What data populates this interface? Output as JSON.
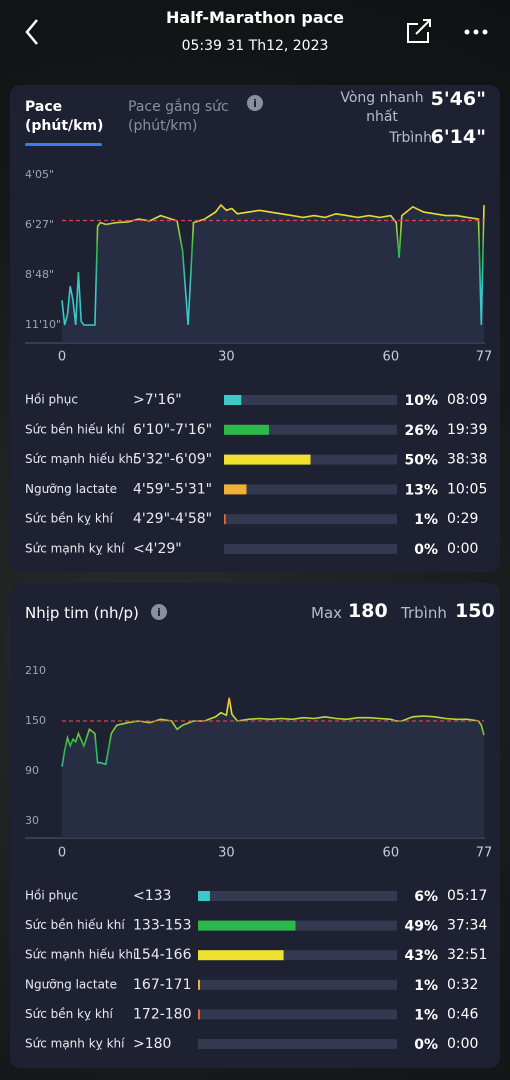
{
  "header": {
    "title": "Half-Marathon pace",
    "datetime": "05:39 31 Th12, 2023"
  },
  "pace_card": {
    "tabs": [
      {
        "label": "Pace",
        "unit": "(phút/km)"
      },
      {
        "label": "Pace gắng sức",
        "unit": "(phút/km)"
      }
    ],
    "fastest_lap": {
      "label": "Vòng nhanh nhất",
      "value": "5'46\""
    },
    "average": {
      "label": "Trbình",
      "value": {
        "value": 374,
        "label": "6'14\""
      }
    }
  },
  "hr_card": {
    "title": "Nhịp tim (nh/p)",
    "max": {
      "label": "Max",
      "value": 180
    },
    "average": {
      "label": "Trbình",
      "value": 150
    }
  },
  "chart_data": [
    {
      "type": "line",
      "y_inverted": true,
      "x": [
        0,
        0.5,
        1,
        1.5,
        2,
        2.5,
        3,
        3.5,
        4,
        5,
        6,
        6.5,
        7,
        8,
        10,
        12,
        14,
        16,
        18,
        20,
        21,
        22,
        23,
        24,
        26,
        28,
        29,
        30,
        31,
        32,
        34,
        36,
        38,
        40,
        42,
        44,
        46,
        48,
        50,
        52,
        54,
        56,
        58,
        60,
        61,
        61.5,
        62,
        64,
        66,
        68,
        70,
        72,
        74,
        76,
        76.5,
        77
      ],
      "series": [
        {
          "gradient": [
            "#f07030",
            "#f0e130",
            "#2db84a",
            "#3cc8c8",
            "#3cc8c8"
          ],
          "values": [
            600,
            670,
            640,
            560,
            600,
            670,
            520,
            660,
            670,
            670,
            670,
            390,
            380,
            385,
            380,
            378,
            370,
            375,
            360,
            370,
            375,
            460,
            670,
            380,
            370,
            350,
            330,
            345,
            340,
            355,
            350,
            345,
            350,
            355,
            360,
            365,
            360,
            365,
            355,
            360,
            365,
            360,
            365,
            360,
            380,
            480,
            360,
            335,
            350,
            355,
            360,
            360,
            365,
            370,
            670,
            330
          ]
        }
      ],
      "xlim": [
        0,
        77
      ],
      "xticks": [
        0,
        30,
        60,
        77
      ],
      "ylim": [
        245,
        670
      ],
      "yticks": [
        {
          "value": 245,
          "label": "4'05\""
        },
        {
          "value": 387,
          "label": "6'27\""
        },
        {
          "value": 528,
          "label": "8'48\""
        },
        {
          "value": 670,
          "label": "11'10\""
        }
      ]
    },
    {
      "type": "zones",
      "categories": [
        "Hồi phục",
        "Sức bền hiếu khí",
        "Sức mạnh hiếu khí",
        "Ngưỡng lactate",
        "Sức bền kỵ khí",
        "Sức mạnh kỵ khí"
      ],
      "ranges": [
        ">7'16\"",
        "6'10\"-7'16\"",
        "5'32\"-6'09\"",
        "4'59\"-5'31\"",
        "4'29\"-4'58\"",
        "<4'29\""
      ],
      "values": [
        10,
        26,
        50,
        13,
        1,
        0
      ],
      "value_labels": [
        "10%",
        "26%",
        "50%",
        "13%",
        "1%",
        "0%"
      ],
      "times": [
        "08:09",
        "19:39",
        "38:38",
        "10:05",
        "0:29",
        "0:00"
      ],
      "colors": [
        "#3cc8c8",
        "#2db84a",
        "#f0e130",
        "#f0b030",
        "#e06a30",
        "#e04040"
      ],
      "xlim": [
        0,
        100
      ]
    },
    {
      "type": "line",
      "y_inverted": false,
      "x": [
        0,
        0.5,
        1,
        1.5,
        2,
        2.5,
        3,
        4,
        5,
        6,
        6.5,
        7,
        8,
        9,
        10,
        12,
        14,
        16,
        18,
        20,
        21,
        22,
        24,
        26,
        28,
        29,
        30,
        30.5,
        31,
        32,
        34,
        36,
        38,
        40,
        42,
        44,
        46,
        48,
        50,
        52,
        54,
        56,
        58,
        60,
        61,
        62,
        64,
        66,
        68,
        70,
        72,
        74,
        76,
        76.5,
        77
      ],
      "series": [
        {
          "gradient": [
            "#f04030",
            "#f0e130",
            "#2db84a",
            "#3cc8c8",
            "#3cc8c8"
          ],
          "values": [
            95,
            115,
            130,
            120,
            128,
            125,
            135,
            120,
            140,
            135,
            100,
            100,
            98,
            135,
            145,
            148,
            150,
            148,
            152,
            150,
            140,
            145,
            150,
            150,
            155,
            160,
            157,
            178,
            158,
            150,
            152,
            153,
            152,
            153,
            152,
            154,
            153,
            155,
            153,
            152,
            154,
            154,
            153,
            152,
            150,
            150,
            155,
            156,
            155,
            153,
            152,
            152,
            150,
            145,
            133
          ]
        }
      ],
      "xlim": [
        0,
        77
      ],
      "xticks": [
        0,
        30,
        60,
        77
      ],
      "ylim": [
        30,
        210
      ],
      "yticks": [
        210,
        150,
        90,
        30
      ]
    },
    {
      "type": "zones",
      "categories": [
        "Hồi phục",
        "Sức bền hiếu khí",
        "Sức mạnh hiếu khí",
        "Ngưỡng lactate",
        "Sức bền kỵ khí",
        "Sức mạnh kỵ khí"
      ],
      "ranges": [
        "<133",
        "133-153",
        "154-166",
        "167-171",
        "172-180",
        ">180"
      ],
      "values": [
        6,
        49,
        43,
        1,
        1,
        0
      ],
      "value_labels": [
        "6%",
        "49%",
        "43%",
        "1%",
        "1%",
        "0%"
      ],
      "times": [
        "05:17",
        "37:34",
        "32:51",
        "0:32",
        "0:46",
        "0:00"
      ],
      "colors": [
        "#3cc8c8",
        "#2db84a",
        "#f0e130",
        "#f0b030",
        "#e06a30",
        "#e04040"
      ],
      "xlim": [
        0,
        100
      ]
    }
  ]
}
